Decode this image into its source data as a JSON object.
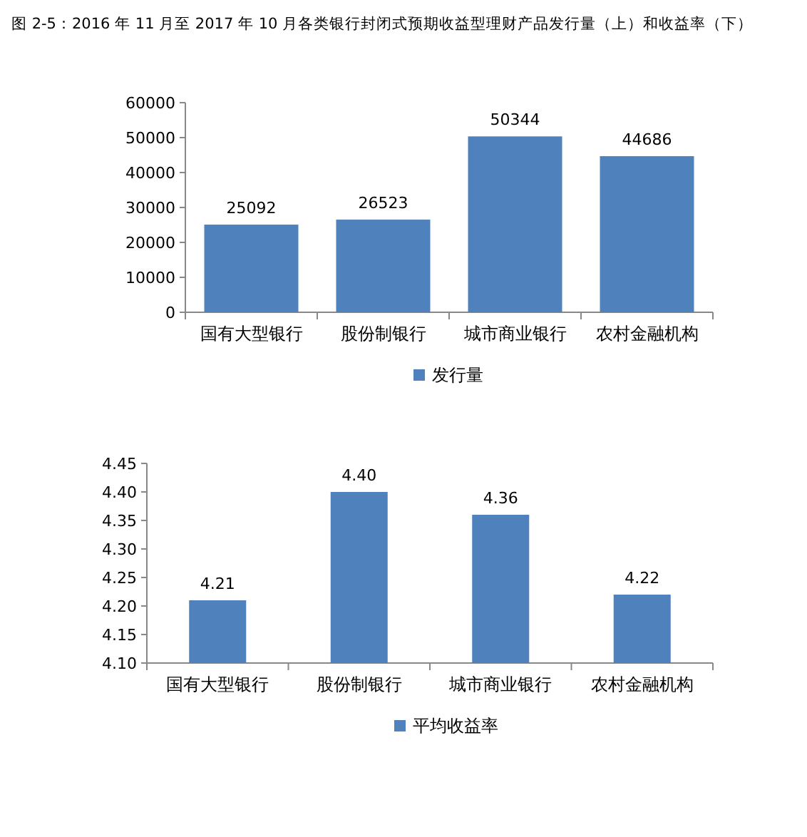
{
  "chart_data": [
    {
      "type": "bar",
      "title": "图 2-5：2016 年 11 月至 2017 年 10 月各类银行封闭式预期收益型理财产品发行量（上）和收益率（下）",
      "categories": [
        "国有大型银行",
        "股份制银行",
        "城市商业银行",
        "农村金融机构"
      ],
      "series": [
        {
          "name": "发行量",
          "color": "#4f81bd",
          "values": [
            25092,
            26523,
            50344,
            44686
          ]
        }
      ],
      "ylim": [
        0,
        60000
      ],
      "yticks": [
        0,
        10000,
        20000,
        30000,
        40000,
        50000,
        60000
      ],
      "data_labels": true,
      "legend": "bottom",
      "grid": false
    },
    {
      "type": "bar",
      "categories": [
        "国有大型银行",
        "股份制银行",
        "城市商业银行",
        "农村金融机构"
      ],
      "series": [
        {
          "name": "平均收益率",
          "color": "#4f81bd",
          "values": [
            4.21,
            4.4,
            4.36,
            4.22
          ],
          "value_labels": [
            "4.21",
            "4.40",
            "4.36",
            "4.22"
          ]
        }
      ],
      "ylim": [
        4.1,
        4.45
      ],
      "yticks": [
        {
          "value": 4.1,
          "label": "4.10"
        },
        {
          "value": 4.15,
          "label": "4.15"
        },
        {
          "value": 4.2,
          "label": "4.20"
        },
        {
          "value": 4.25,
          "label": "4.25"
        },
        {
          "value": 4.3,
          "label": "4.30"
        },
        {
          "value": 4.35,
          "label": "4.35"
        },
        {
          "value": 4.4,
          "label": "4.40"
        },
        {
          "value": 4.45,
          "label": "4.45"
        }
      ],
      "legend": "bottom",
      "grid": false
    }
  ]
}
